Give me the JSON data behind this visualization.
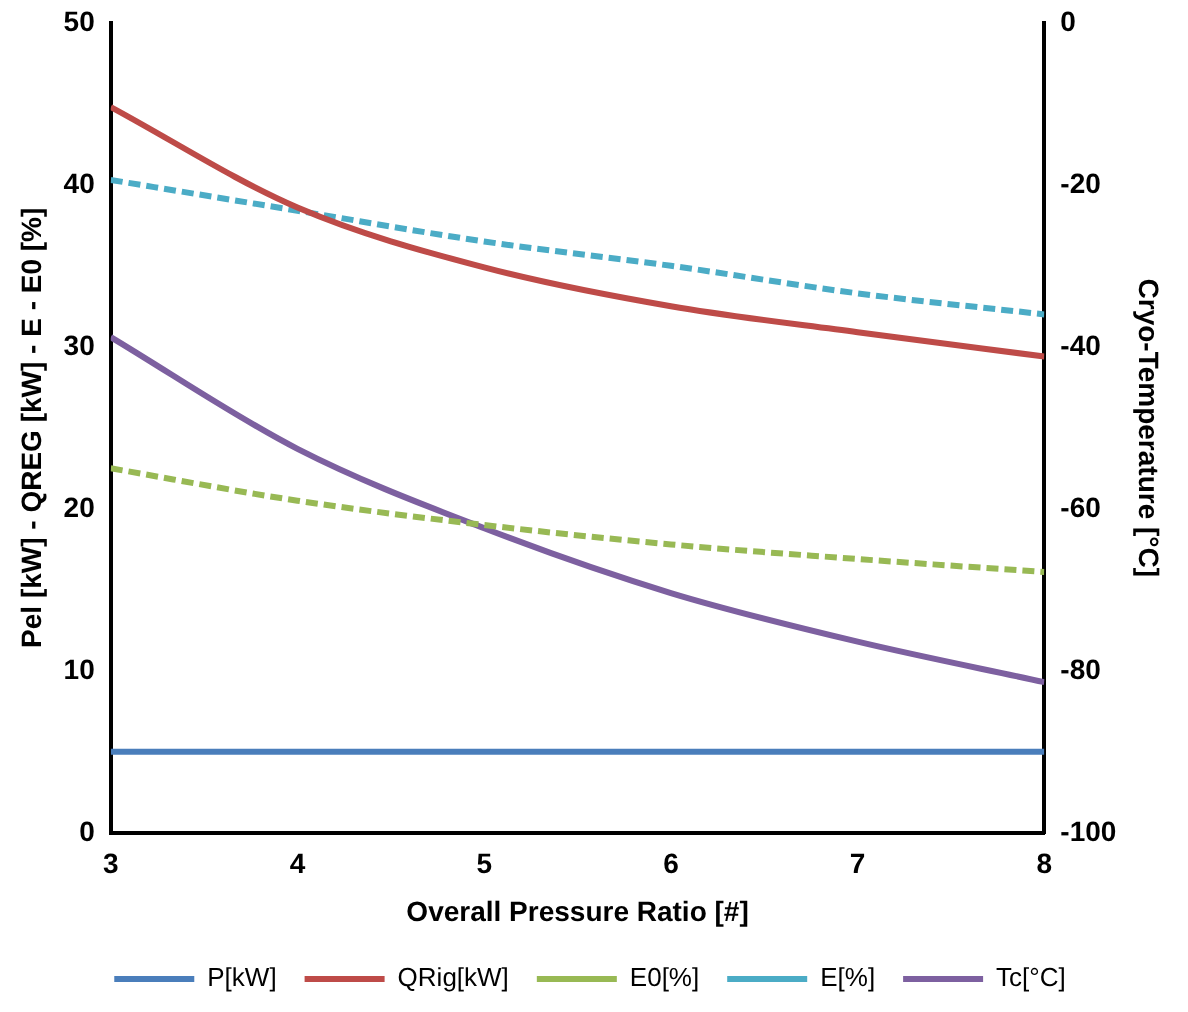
{
  "chart_data": {
    "type": "line",
    "xlabel": "Overall Pressure Ratio [#]",
    "ylabel": "Pel [kW] - QREG [kW] - E - E0 [%]",
    "y2label": "Cryo-Temperature [°C]",
    "x": [
      3,
      4,
      5,
      6,
      7,
      8
    ],
    "xlim": [
      3,
      8
    ],
    "xticks": [
      3,
      4,
      5,
      6,
      7,
      8
    ],
    "ylim": [
      0,
      50
    ],
    "yticks": [
      0,
      10,
      20,
      30,
      40,
      50
    ],
    "y2lim": [
      -100,
      0
    ],
    "y2ticks": [
      -100,
      -80,
      -60,
      -40,
      -20,
      0
    ],
    "grid": false,
    "legend": "bottom",
    "marker": "none",
    "series": [
      {
        "name": "P[kW]",
        "color": "#4a7ebb",
        "line_style": "solid",
        "values": [
          5,
          5,
          5,
          5,
          5,
          5
        ]
      },
      {
        "name": "QRig[kW]",
        "color": "#be4b48",
        "line_style": "solid",
        "values": [
          44.8,
          38.6,
          34.9,
          32.5,
          30.9,
          29.4
        ]
      },
      {
        "name": "E0[%]",
        "color": "#98b954",
        "line_style": "dashed",
        "values": [
          22.5,
          20.5,
          19,
          17.8,
          16.9,
          16.1
        ]
      },
      {
        "name": "E[%]",
        "color": "#4bacc6",
        "line_style": "dashed",
        "values": [
          40.3,
          38.4,
          36.5,
          35,
          33.3,
          32
        ]
      },
      {
        "name": "Tc[°C]",
        "color": "#7d60a0",
        "line_style": "solid",
        "axis": "y2",
        "values": [
          -38.8,
          -52.6,
          -62.4,
          -70.4,
          -76.4,
          -81.4
        ]
      }
    ]
  }
}
